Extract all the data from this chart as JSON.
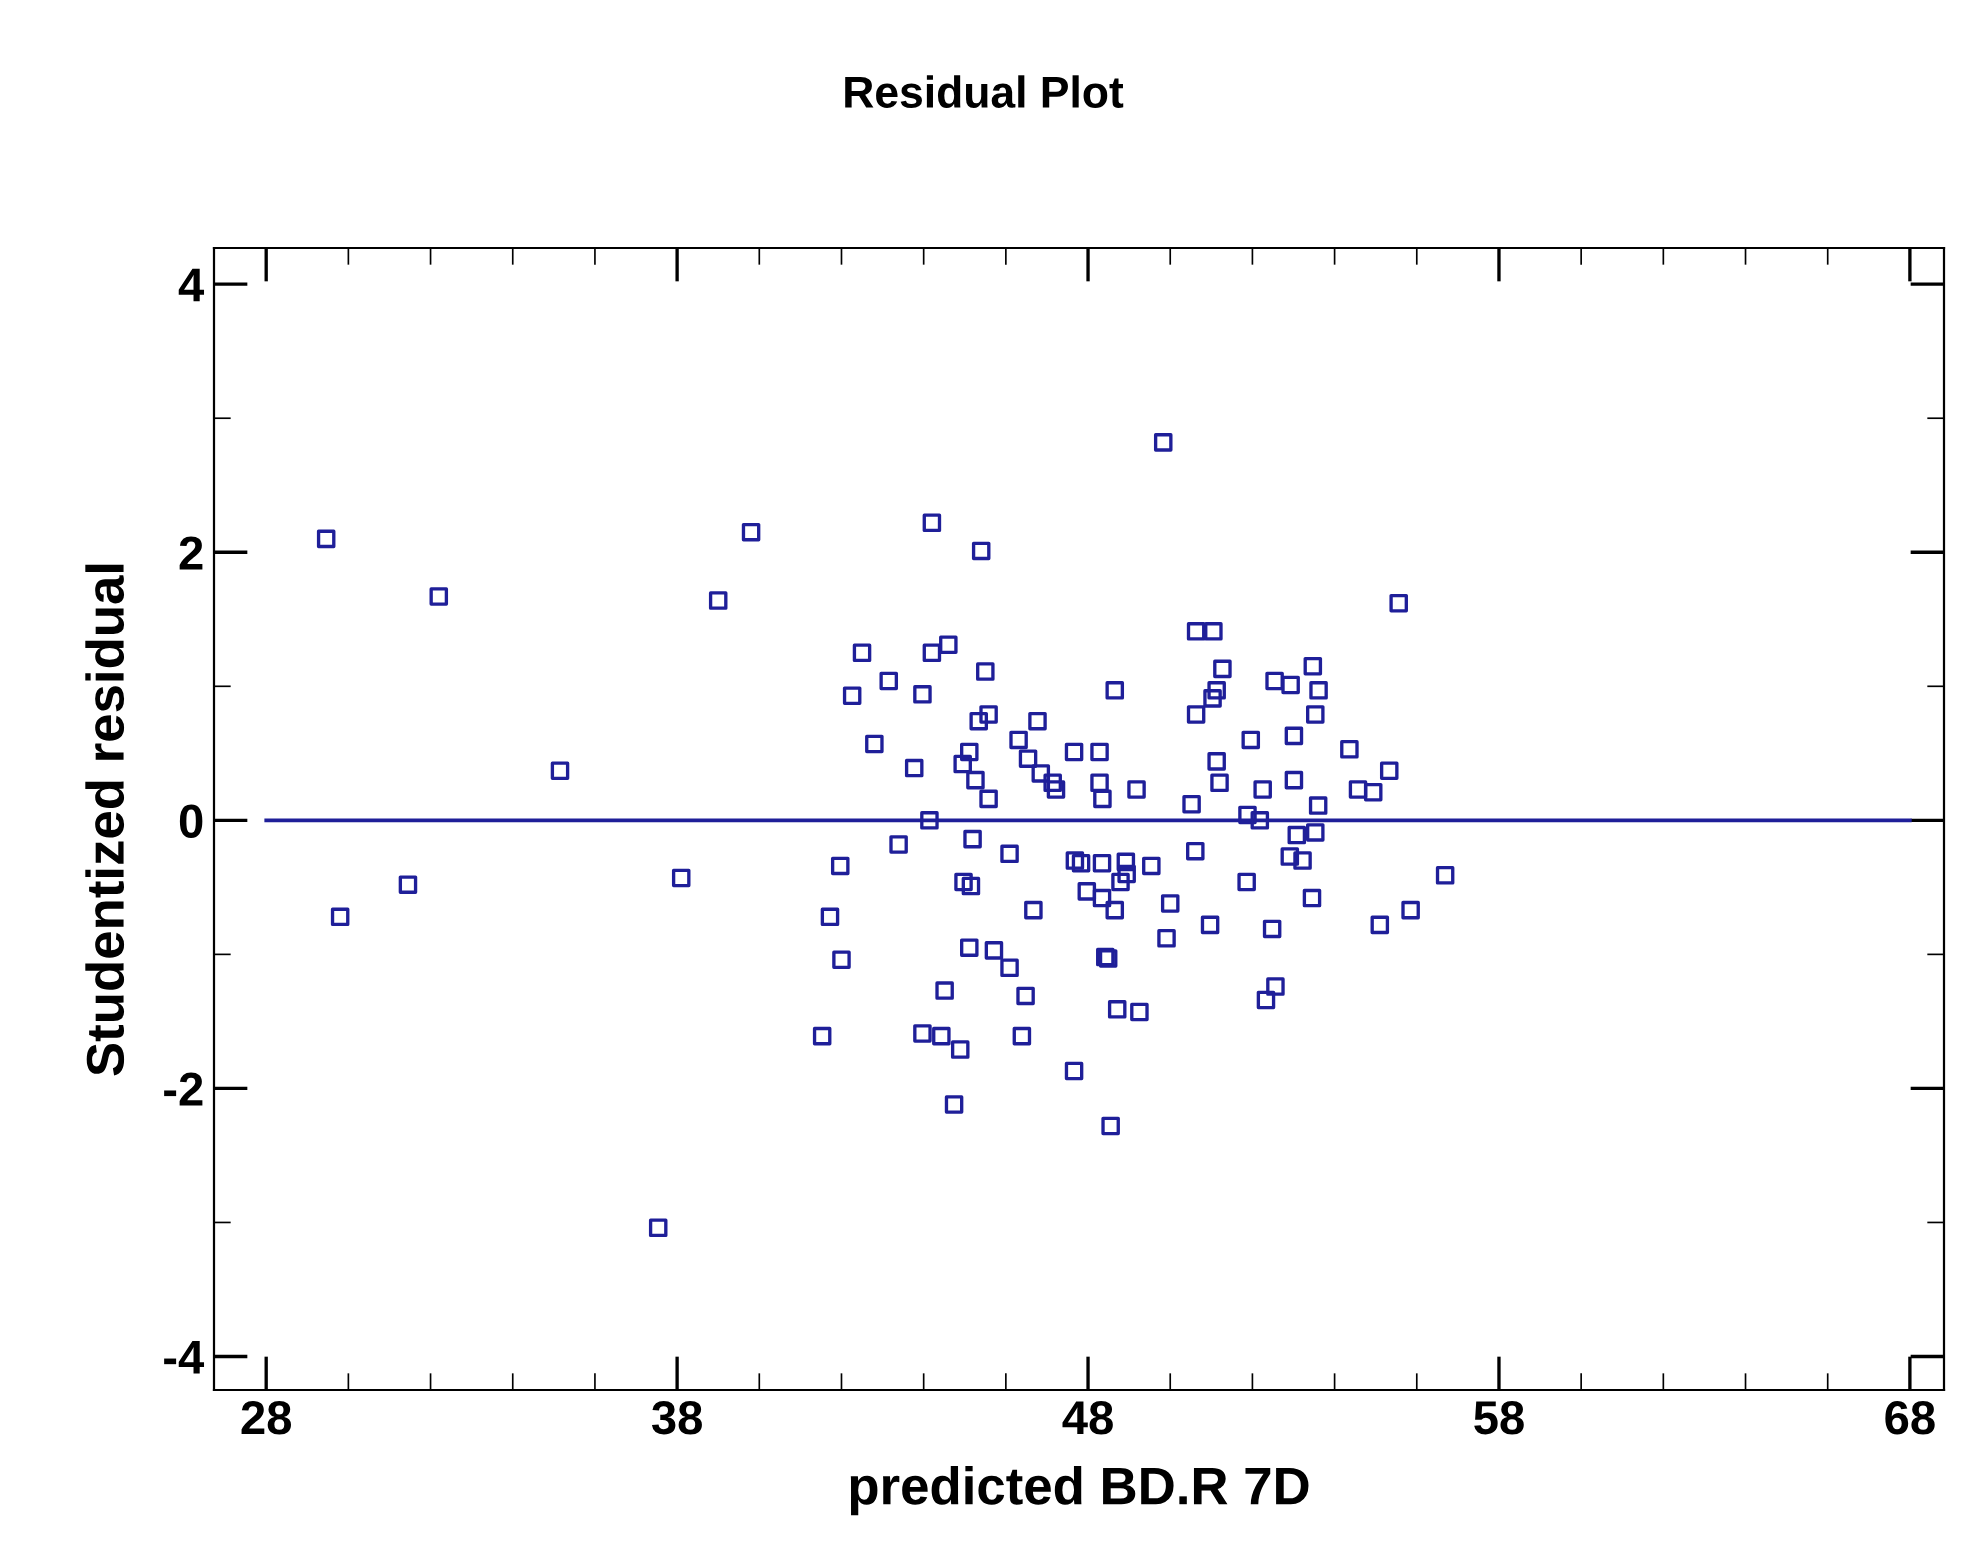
{
  "chart_data": {
    "type": "scatter",
    "title": "Residual Plot",
    "xlabel": "predicted BD.R 7D",
    "ylabel": "Studentized residual",
    "xlim": [
      26.73,
      68.83
    ],
    "ylim": [
      -4.25,
      4.27
    ],
    "xticks": [
      28,
      38,
      48,
      58,
      68
    ],
    "yticks": [
      -4,
      -2,
      0,
      2,
      4
    ],
    "grid": false,
    "marker": "square",
    "ref_lines": [
      {
        "axis": "y",
        "value": 0,
        "color": "#1f1f99"
      }
    ],
    "series": [
      {
        "color": "#1f1f99",
        "x": [
          29.46,
          29.8,
          31.45,
          32.2,
          35.15,
          37.54,
          38.1,
          39.0,
          39.8,
          41.53,
          41.97,
          41.72,
          42.0,
          42.5,
          42.26,
          42.8,
          49.83,
          44.2,
          45.4,
          44.2,
          44.6,
          45.5,
          43.15,
          43.97,
          48.65,
          45.58,
          45.34,
          46.77,
          43.77,
          45.11,
          44.95,
          45.26,
          45.58,
          46.31,
          46.54,
          46.85,
          47.14,
          47.22,
          47.66,
          48.28,
          48.28,
          48.35,
          49.18,
          50.52,
          50.63,
          51.05,
          50.63,
          44.14,
          43.39,
          45.19,
          46.09,
          44.97,
          45.15,
          47.68,
          47.83,
          48.34,
          48.92,
          48.94,
          48.79,
          49.54,
          50.61,
          47.97,
          48.34,
          48.65,
          46.67,
          50.0,
          49.91,
          45.11,
          45.71,
          46.09,
          48.42,
          48.49,
          44.51,
          46.48,
          48.71,
          49.25,
          43.97,
          44.43,
          44.89,
          46.39,
          47.66,
          44.74,
          48.55,
          55.56,
          51.27,
          51.13,
          51.03,
          52.54,
          52.93,
          53.47,
          53.61,
          53.53,
          51.96,
          53.01,
          54.36,
          55.33,
          51.13,
          51.2,
          52.25,
          53.01,
          54.57,
          54.94,
          53.6,
          51.88,
          52.18,
          53.08,
          53.53,
          52.91,
          53.22,
          51.86,
          56.69,
          53.45,
          55.85,
          55.1,
          50.97,
          52.48,
          52.56,
          52.33
        ],
        "values": [
          2.1,
          -0.72,
          -0.48,
          1.67,
          0.37,
          -3.04,
          -0.43,
          1.64,
          2.15,
          -1.61,
          -0.34,
          -0.72,
          -1.04,
          1.25,
          0.93,
          0.57,
          2.82,
          2.22,
          2.01,
          1.25,
          1.31,
          1.11,
          1.04,
          0.94,
          0.97,
          0.79,
          0.74,
          0.74,
          0.39,
          0.51,
          0.42,
          0.3,
          0.16,
          0.6,
          0.46,
          0.35,
          0.28,
          0.23,
          0.51,
          0.51,
          0.28,
          0.16,
          0.23,
          0.12,
          1.41,
          1.41,
          0.79,
          0.0,
          -0.18,
          -0.14,
          -0.25,
          -0.46,
          -0.49,
          -0.3,
          -0.32,
          -0.32,
          -0.31,
          -0.4,
          -0.46,
          -0.34,
          -0.23,
          -0.53,
          -0.58,
          -0.67,
          -0.67,
          -0.62,
          -0.88,
          -0.95,
          -0.97,
          -1.1,
          -1.02,
          -1.03,
          -1.27,
          -1.31,
          -1.41,
          -1.43,
          -1.59,
          -1.61,
          -1.71,
          -1.61,
          -1.87,
          -2.12,
          -2.28,
          1.62,
          1.13,
          0.97,
          0.91,
          1.04,
          1.01,
          1.15,
          0.97,
          0.79,
          0.6,
          0.63,
          0.53,
          0.37,
          0.44,
          0.28,
          0.23,
          0.3,
          0.23,
          0.21,
          0.11,
          0.04,
          0.0,
          -0.11,
          -0.09,
          -0.27,
          -0.3,
          -0.46,
          -0.41,
          -0.58,
          -0.67,
          -0.78,
          -0.78,
          -0.81,
          -1.24,
          -1.34
        ]
      }
    ]
  }
}
